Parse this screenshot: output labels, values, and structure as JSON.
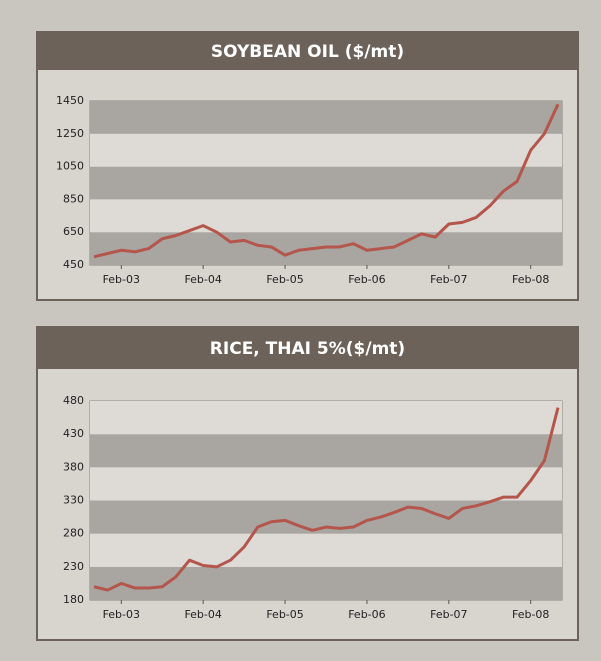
{
  "chart_data": [
    {
      "type": "line",
      "title": "SOYBEAN OIL ($/mt)",
      "categories": [
        null,
        null,
        "Feb-03",
        null,
        null,
        null,
        null,
        null,
        "Feb-04",
        null,
        null,
        null,
        null,
        null,
        "Feb-05",
        null,
        null,
        null,
        null,
        null,
        "Feb-06",
        null,
        null,
        null,
        null,
        null,
        "Feb-07",
        null,
        null,
        null,
        null,
        null,
        "Feb-08",
        null,
        null
      ],
      "series": [
        {
          "color": "#b4564c",
          "values": [
            500,
            520,
            540,
            530,
            550,
            610,
            630,
            660,
            690,
            650,
            590,
            600,
            570,
            560,
            510,
            540,
            550,
            560,
            560,
            580,
            540,
            550,
            560,
            600,
            640,
            620,
            700,
            710,
            740,
            810,
            900,
            960,
            1150,
            1250,
            1430
          ]
        }
      ],
      "ylim": [
        450,
        1450
      ],
      "yticks": [
        450,
        650,
        850,
        1050,
        1250,
        1450
      ],
      "grid": true
    },
    {
      "type": "line",
      "title": "RICE, THAI 5%($/mt)",
      "categories": [
        null,
        null,
        "Feb-03",
        null,
        null,
        null,
        null,
        null,
        "Feb-04",
        null,
        null,
        null,
        null,
        null,
        "Feb-05",
        null,
        null,
        null,
        null,
        null,
        "Feb-06",
        null,
        null,
        null,
        null,
        null,
        "Feb-07",
        null,
        null,
        null,
        null,
        null,
        "Feb-08",
        null,
        null
      ],
      "series": [
        {
          "color": "#b4564c",
          "values": [
            200,
            195,
            205,
            198,
            198,
            200,
            215,
            240,
            232,
            230,
            240,
            260,
            290,
            298,
            300,
            292,
            285,
            290,
            288,
            290,
            300,
            305,
            312,
            320,
            318,
            310,
            303,
            318,
            322,
            328,
            335,
            335,
            360,
            390,
            470
          ]
        }
      ],
      "ylim": [
        180,
        480
      ],
      "yticks": [
        180,
        230,
        280,
        330,
        380,
        430,
        480
      ],
      "grid": true
    }
  ]
}
